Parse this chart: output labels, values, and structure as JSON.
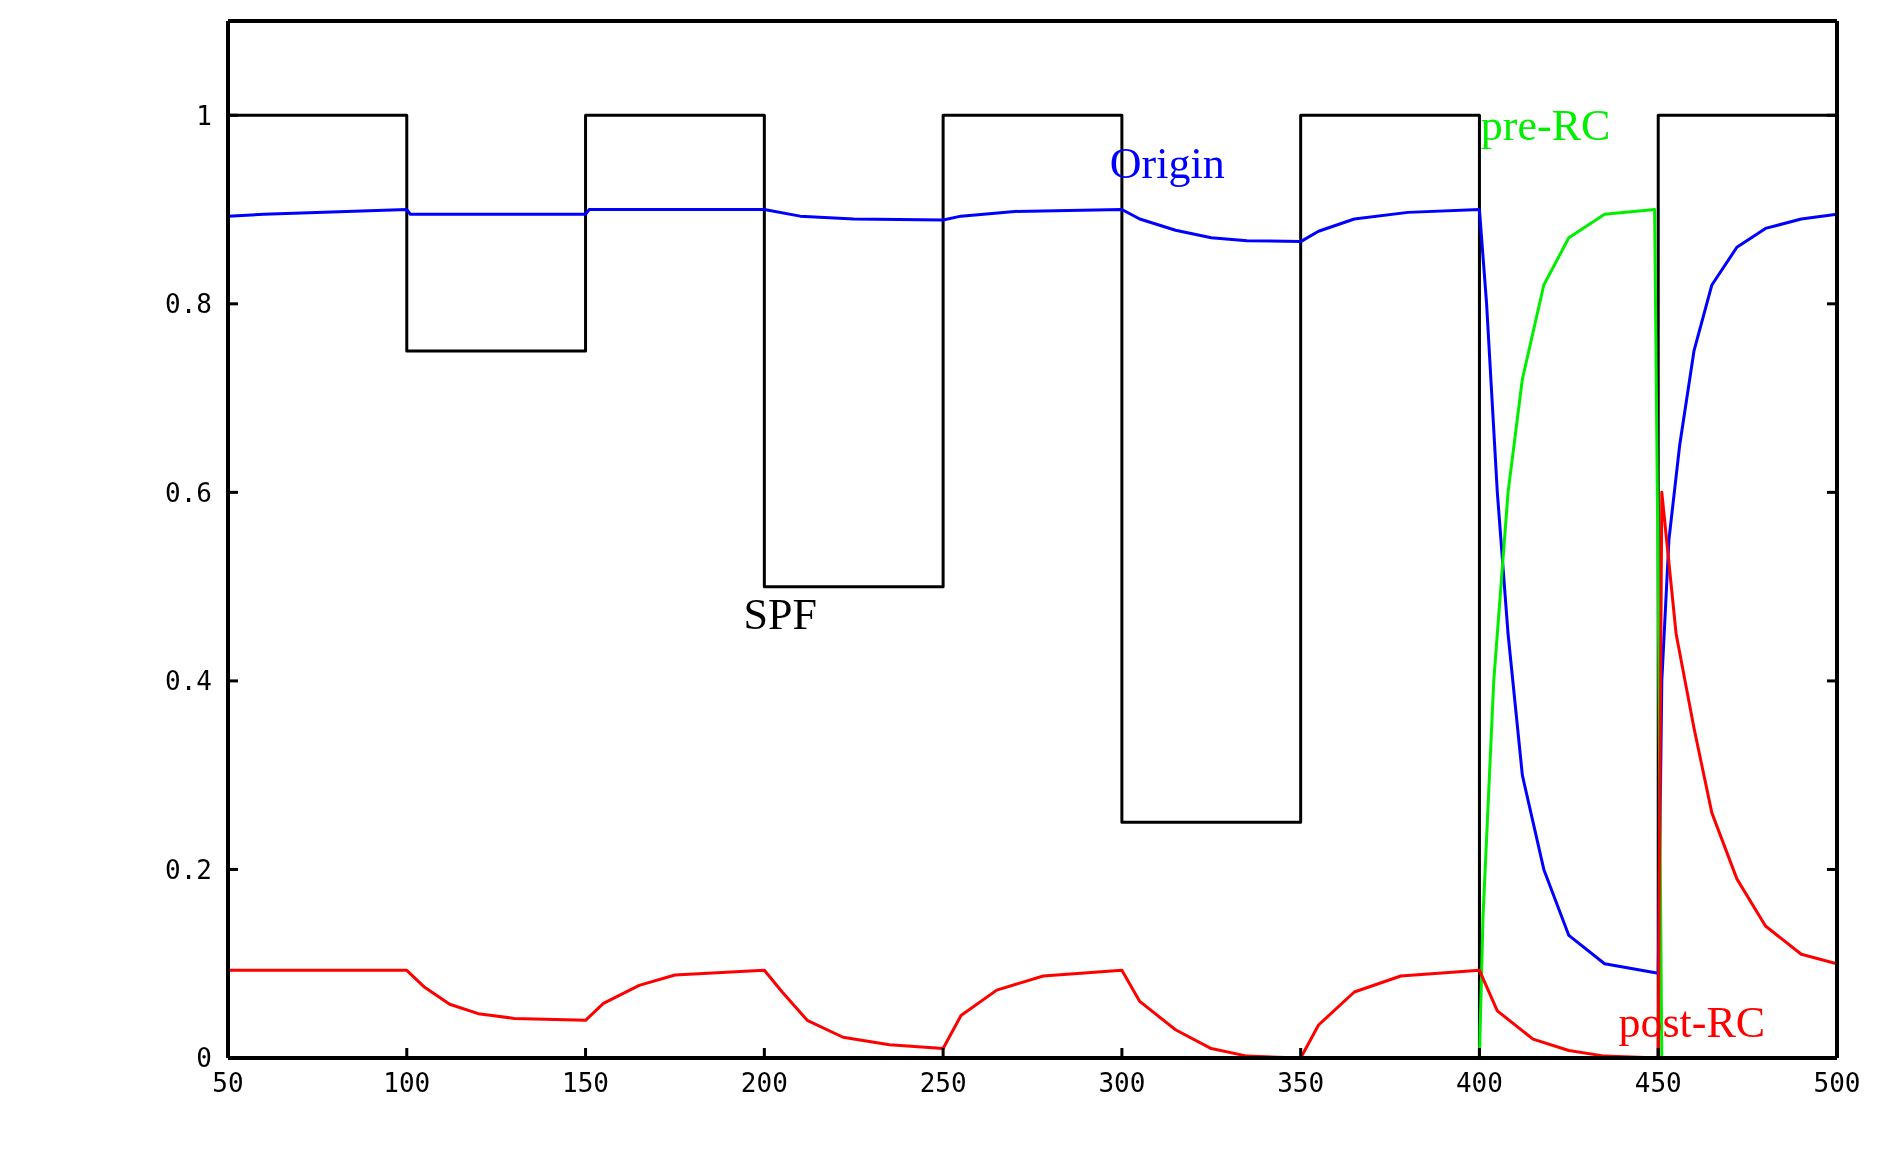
{
  "chart_data": {
    "type": "line",
    "xlim": [
      50,
      500
    ],
    "ylim": [
      0,
      1.1
    ],
    "xticks": [
      50,
      100,
      150,
      200,
      250,
      300,
      350,
      400,
      450,
      500
    ],
    "yticks": [
      0,
      0.2,
      0.4,
      0.6,
      0.8,
      1
    ],
    "series": [
      {
        "name": "SPF",
        "type": "step",
        "color": "#000000",
        "x": [
          50,
          100,
          150,
          200,
          250,
          300,
          350,
          400,
          450,
          500
        ],
        "values": [
          1,
          0.75,
          1,
          0.5,
          1,
          0.25,
          1,
          0,
          1,
          1
        ]
      },
      {
        "name": "Origin",
        "color": "#0000ff",
        "x": [
          50,
          60,
          100,
          101,
          150,
          151,
          200,
          210,
          225,
          250,
          255,
          270,
          300,
          305,
          315,
          325,
          335,
          350,
          355,
          365,
          380,
          400,
          402,
          405,
          408,
          412,
          418,
          425,
          435,
          450,
          451,
          453,
          456,
          460,
          465,
          472,
          480,
          490,
          500
        ],
        "values": [
          0.893,
          0.895,
          0.9,
          0.895,
          0.895,
          0.9,
          0.9,
          0.893,
          0.89,
          0.889,
          0.893,
          0.898,
          0.9,
          0.89,
          0.878,
          0.87,
          0.867,
          0.866,
          0.877,
          0.89,
          0.897,
          0.9,
          0.8,
          0.6,
          0.45,
          0.3,
          0.2,
          0.13,
          0.1,
          0.09,
          0.4,
          0.55,
          0.65,
          0.75,
          0.82,
          0.86,
          0.88,
          0.89,
          0.895
        ]
      },
      {
        "name": "pre-RC",
        "color": "#00ee00",
        "x": [
          50,
          400,
          401,
          404,
          408,
          412,
          418,
          425,
          435,
          449,
          450,
          451,
          500
        ],
        "values": [
          0,
          0,
          0.15,
          0.4,
          0.6,
          0.72,
          0.82,
          0.87,
          0.895,
          0.9,
          0.5,
          0,
          0
        ]
      },
      {
        "name": "post-RC",
        "color": "#ff0000",
        "x": [
          50,
          100,
          105,
          112,
          120,
          130,
          150,
          155,
          165,
          175,
          200,
          205,
          212,
          222,
          235,
          250,
          255,
          265,
          278,
          300,
          305,
          315,
          325,
          335,
          350,
          355,
          365,
          378,
          400,
          405,
          415,
          425,
          435,
          450,
          451,
          455,
          460,
          465,
          472,
          480,
          490,
          500
        ],
        "values": [
          0.093,
          0.093,
          0.075,
          0.057,
          0.047,
          0.042,
          0.04,
          0.058,
          0.077,
          0.088,
          0.093,
          0.07,
          0.04,
          0.022,
          0.014,
          0.01,
          0.045,
          0.072,
          0.087,
          0.093,
          0.06,
          0.03,
          0.01,
          0.002,
          0,
          0.035,
          0.07,
          0.087,
          0.093,
          0.05,
          0.02,
          0.008,
          0.002,
          0,
          0.6,
          0.45,
          0.35,
          0.26,
          0.19,
          0.14,
          0.11,
          0.1
        ]
      }
    ]
  }
}
